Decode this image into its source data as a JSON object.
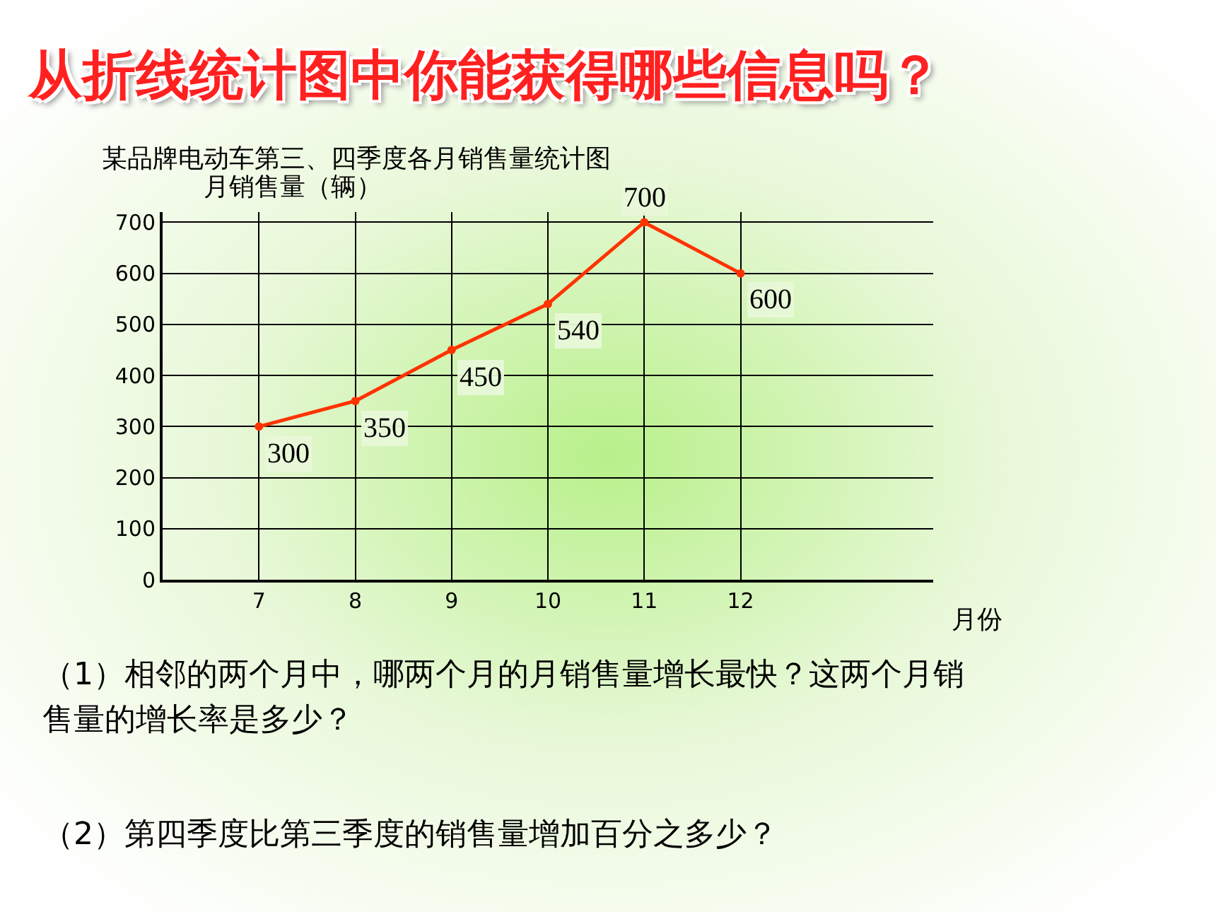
{
  "chart_data": {
    "type": "line",
    "title": "从折线统计图中你能获得哪些信息吗？",
    "subtitle": "某品牌电动车第三、四季度各月销售量统计图",
    "ylabel": "月销售量（辆）",
    "xlabel": "月份",
    "x": [
      7,
      8,
      9,
      10,
      11,
      12
    ],
    "series": [
      {
        "color": "#ff3300",
        "values": [
          300,
          350,
          450,
          540,
          700,
          600
        ]
      }
    ],
    "xlim": [
      6,
      14
    ],
    "xticks": [
      7,
      8,
      9,
      10,
      11,
      12
    ],
    "ylim": [
      0,
      720
    ],
    "yticks": [
      0,
      100,
      200,
      300,
      400,
      500,
      600,
      700
    ],
    "grid": true,
    "marker": "circle",
    "line_style": "solid",
    "data_labels": true,
    "legend": false,
    "annotations": [
      "（1）相邻的两个月中，哪两个月的月销售量增长最快？这两个月销售量的增长率是多少？",
      "（2）第四季度比第三季度的销售量增加百分之多少？"
    ]
  }
}
